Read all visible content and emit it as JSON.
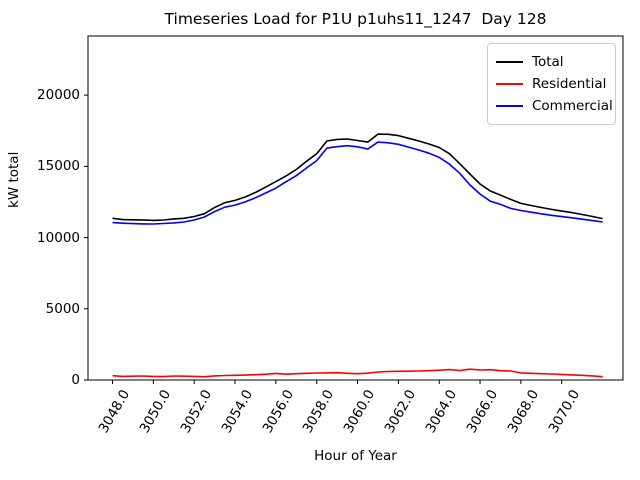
{
  "title": "Timeseries Load for P1U p1uhs11_1247  Day 128",
  "colors": {
    "background": "#ffffff",
    "axis": "#000000",
    "legend_border": "#cccccc",
    "total": "#000000",
    "residential": "#ff0000",
    "commercial": "#0000ff"
  },
  "legend": {
    "position": "upper right",
    "items": [
      {
        "label": "Total",
        "color": "#000000"
      },
      {
        "label": "Residential",
        "color": "#ff0000"
      },
      {
        "label": "Commercial",
        "color": "#0000ff"
      }
    ]
  },
  "chart_data": {
    "type": "line",
    "title": "Timeseries Load for P1U p1uhs11_1247  Day 128",
    "xlabel": "Hour of Year",
    "ylabel": "kW total",
    "xlim": [
      3046.8,
      3073.0
    ],
    "ylim": [
      0,
      24150
    ],
    "grid": false,
    "legend_position": "upper right",
    "xtick_values": [
      3048,
      3050,
      3052,
      3054,
      3056,
      3058,
      3060,
      3062,
      3064,
      3066,
      3068,
      3070
    ],
    "xtick_labels": [
      "3048.0",
      "3050.0",
      "3052.0",
      "3054.0",
      "3056.0",
      "3058.0",
      "3060.0",
      "3062.0",
      "3064.0",
      "3066.0",
      "3068.0",
      "3070.0"
    ],
    "ytick_values": [
      0,
      5000,
      10000,
      15000,
      20000
    ],
    "ytick_labels": [
      "0",
      "5000",
      "10000",
      "15000",
      "20000"
    ],
    "x": [
      3048.0,
      3048.5,
      3049.0,
      3049.5,
      3050.0,
      3050.5,
      3051.0,
      3051.5,
      3052.0,
      3052.5,
      3053.0,
      3053.5,
      3054.0,
      3054.5,
      3055.0,
      3055.5,
      3056.0,
      3056.5,
      3057.0,
      3057.5,
      3058.0,
      3058.5,
      3059.0,
      3059.5,
      3060.0,
      3060.5,
      3061.0,
      3061.5,
      3062.0,
      3062.5,
      3063.0,
      3063.5,
      3064.0,
      3064.5,
      3065.0,
      3065.5,
      3066.0,
      3066.5,
      3067.0,
      3067.5,
      3068.0,
      3068.5,
      3069.0,
      3069.5,
      3070.0,
      3070.5,
      3071.0,
      3071.5,
      3072.0
    ],
    "series": [
      {
        "name": "Total",
        "color": "#000000",
        "values": [
          11350,
          11260,
          11250,
          11240,
          11205,
          11230,
          11310,
          11355,
          11480,
          11675,
          12110,
          12445,
          12610,
          12845,
          13160,
          13540,
          13930,
          14330,
          14780,
          15350,
          15890,
          16780,
          16890,
          16920,
          16815,
          16700,
          17260,
          17250,
          17160,
          16970,
          16780,
          16570,
          16320,
          15890,
          15190,
          14460,
          13750,
          13270,
          12980,
          12680,
          12400,
          12250,
          12110,
          11980,
          11860,
          11750,
          11620,
          11480,
          11330
        ]
      },
      {
        "name": "Residential",
        "color": "#ff0000",
        "values": [
          300,
          250,
          270,
          280,
          255,
          240,
          280,
          265,
          250,
          235,
          290,
          315,
          330,
          345,
          370,
          410,
          460,
          410,
          440,
          470,
          490,
          500,
          510,
          470,
          445,
          480,
          560,
          600,
          610,
          620,
          630,
          650,
          690,
          730,
          670,
          760,
          700,
          720,
          650,
          630,
          500,
          470,
          440,
          420,
          390,
          360,
          330,
          290,
          230
        ]
      },
      {
        "name": "Commercial",
        "color": "#0000ff",
        "values": [
          11050,
          11010,
          10980,
          10960,
          10950,
          10990,
          11030,
          11090,
          11230,
          11440,
          11820,
          12130,
          12280,
          12500,
          12790,
          13130,
          13470,
          13920,
          14340,
          14880,
          15400,
          16280,
          16380,
          16450,
          16370,
          16220,
          16700,
          16650,
          16550,
          16350,
          16150,
          15920,
          15630,
          15160,
          14520,
          13700,
          13050,
          12550,
          12330,
          12050,
          11900,
          11780,
          11670,
          11560,
          11470,
          11390,
          11290,
          11190,
          11100
        ]
      }
    ]
  }
}
